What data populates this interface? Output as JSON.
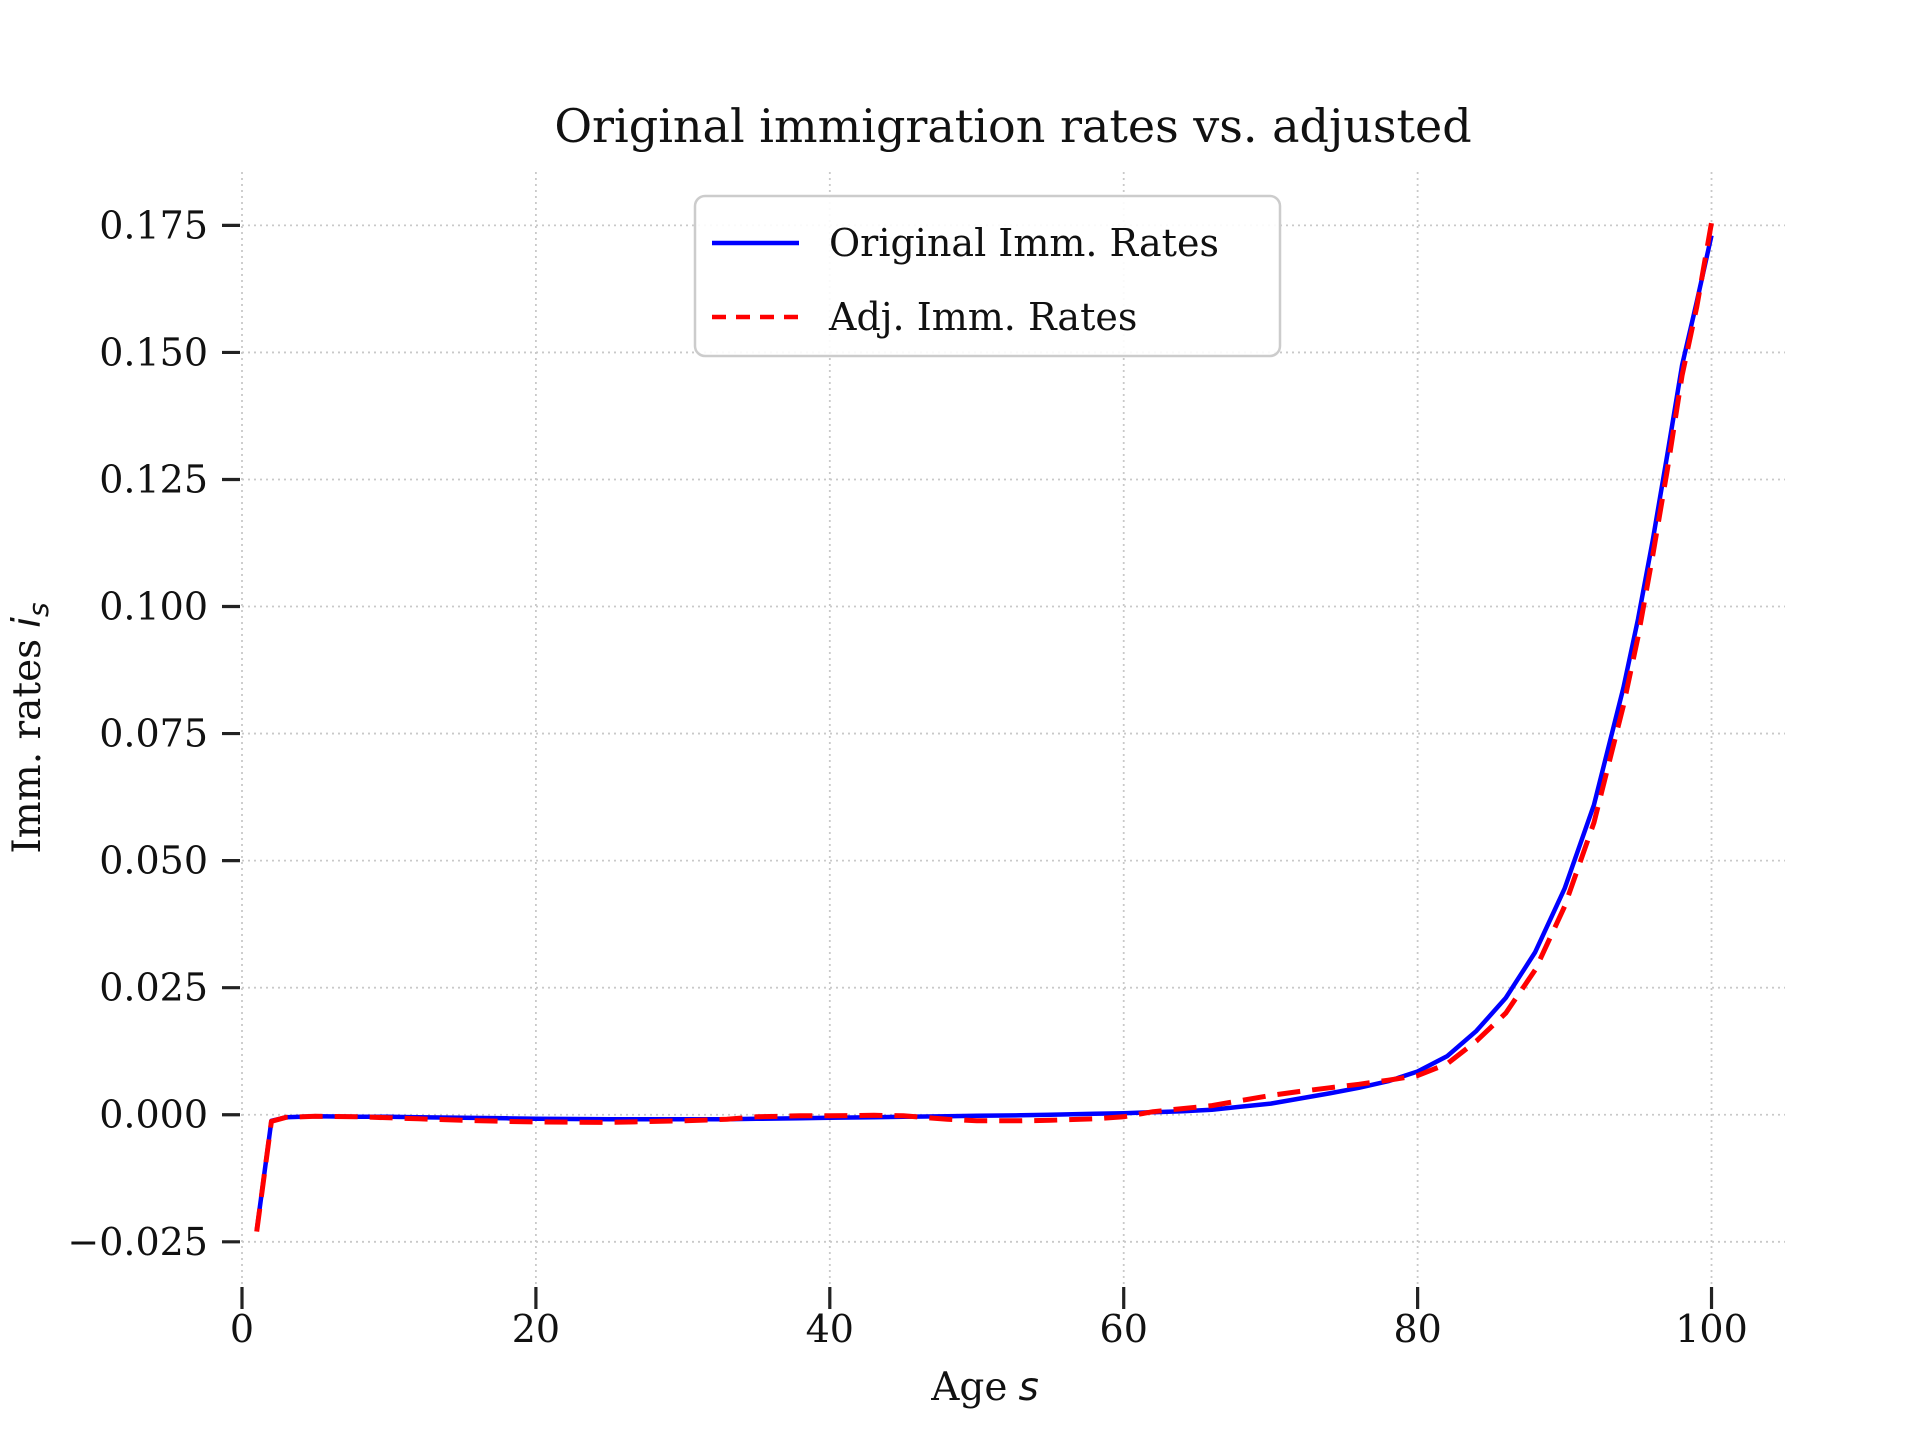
{
  "title": "Original immigration rates vs. adjusted",
  "x_axis": {
    "label_prefix": "Age",
    "label_var": "s",
    "ticks": [
      0,
      20,
      40,
      60,
      80,
      100
    ]
  },
  "y_axis": {
    "label_prefix": "Imm. rates",
    "label_var": "i",
    "label_sub": "s",
    "ticks": [
      -0.025,
      0.0,
      0.025,
      0.05,
      0.075,
      0.1,
      0.125,
      0.15,
      0.175
    ],
    "decimals": 3
  },
  "legend": {
    "entries": [
      {
        "label": "Original Imm. Rates",
        "color": "#0000ff",
        "style": "solid"
      },
      {
        "label": "Adj. Imm. Rates",
        "color": "#ff0000",
        "style": "dashed"
      }
    ]
  },
  "colors": {
    "original_line": "#0000ff",
    "adjusted_line": "#ff0000",
    "grid": "#c9c9c9",
    "tick_mark": "#222222",
    "legend_border": "#cccccc",
    "background": "#ffffff",
    "text": "#111111"
  },
  "chart_data": {
    "type": "line",
    "title": "Original immigration rates vs. adjusted",
    "xlabel": "Age s",
    "ylabel": "Imm. rates i_s",
    "grid": "dotted both axes",
    "legend_position": "upper center",
    "xlim": [
      0,
      105
    ],
    "ylim": [
      -0.0335,
      0.1855
    ],
    "x_ticks": [
      0,
      20,
      40,
      60,
      80,
      100
    ],
    "y_ticks": [
      -0.025,
      0.0,
      0.025,
      0.05,
      0.075,
      0.1,
      0.125,
      0.15,
      0.175
    ],
    "x": [
      1,
      2,
      3,
      5,
      8,
      10,
      12,
      15,
      18,
      20,
      25,
      30,
      33,
      35,
      38,
      40,
      43,
      45,
      48,
      50,
      53,
      55,
      58,
      60,
      62,
      64,
      66,
      68,
      70,
      72,
      74,
      76,
      78,
      80,
      82,
      84,
      86,
      88,
      90,
      92,
      94,
      95,
      96,
      97,
      98,
      99,
      100
    ],
    "series": [
      {
        "name": "Original Imm. Rates",
        "color": "#0000ff",
        "style": "solid",
        "values": [
          -0.0228,
          -0.0012,
          -0.0005,
          -0.0003,
          -0.0004,
          -0.0004,
          -0.0005,
          -0.0006,
          -0.0007,
          -0.0008,
          -0.0009,
          -0.0009,
          -0.0009,
          -0.0008,
          -0.0007,
          -0.0006,
          -0.0005,
          -0.0004,
          -0.0003,
          -0.0002,
          -0.0001,
          0.0,
          0.0002,
          0.0003,
          0.0005,
          0.0007,
          0.001,
          0.0016,
          0.0022,
          0.0032,
          0.0042,
          0.0053,
          0.0066,
          0.0085,
          0.0115,
          0.0165,
          0.023,
          0.032,
          0.0445,
          0.061,
          0.084,
          0.0975,
          0.113,
          0.13,
          0.1475,
          0.16,
          0.173
        ]
      },
      {
        "name": "Adj. Imm. Rates",
        "color": "#ff0000",
        "style": "dashed",
        "values": [
          -0.023,
          -0.0013,
          -0.0005,
          -0.0003,
          -0.0004,
          -0.0006,
          -0.0008,
          -0.0011,
          -0.0013,
          -0.0014,
          -0.0015,
          -0.0012,
          -0.0009,
          -0.0004,
          -0.0002,
          -0.0002,
          -0.0001,
          -0.0002,
          -0.0009,
          -0.0012,
          -0.0012,
          -0.0011,
          -0.0008,
          -0.0004,
          0.0006,
          0.0012,
          0.0018,
          0.0028,
          0.0038,
          0.0046,
          0.0053,
          0.006,
          0.0068,
          0.0077,
          0.01,
          0.0145,
          0.02,
          0.0285,
          0.041,
          0.0575,
          0.0805,
          0.094,
          0.11,
          0.127,
          0.1455,
          0.159,
          0.1755
        ]
      }
    ]
  }
}
